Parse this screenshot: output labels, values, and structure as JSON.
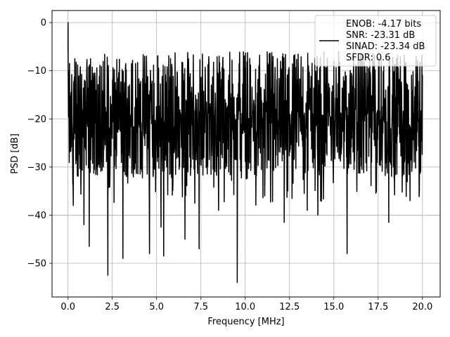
{
  "chart_data": {
    "type": "line",
    "title": "",
    "xlabel": "Frequency [MHz]",
    "ylabel": "PSD [dB]",
    "xlim": [
      -0.9,
      21.0
    ],
    "ylim": [
      -57,
      2.5
    ],
    "xticks": [
      0.0,
      2.5,
      5.0,
      7.5,
      10.0,
      12.5,
      15.0,
      17.5,
      20.0
    ],
    "xtick_labels": [
      "0.0",
      "2.5",
      "5.0",
      "7.5",
      "10.0",
      "12.5",
      "15.0",
      "17.5",
      "20.0"
    ],
    "yticks": [
      0,
      -10,
      -20,
      -30,
      -40,
      -50
    ],
    "ytick_labels": [
      "0",
      "−10",
      "−20",
      "−30",
      "−40",
      "−50"
    ],
    "grid": true,
    "legend_position": "top-right",
    "series": [
      {
        "color": "#000000",
        "description": "noise-like spectrum; values approximate (dense signal, individual points not readable)",
        "x_range": [
          0.0,
          20.0
        ],
        "level_db": -20,
        "upper_envelope_db": -8,
        "lower_envelope_db": -32,
        "peak": {
          "x": 0.0,
          "y": 0.0
        },
        "deep_dips": [
          {
            "x": 0.3,
            "y": -38
          },
          {
            "x": 0.9,
            "y": -42
          },
          {
            "x": 1.2,
            "y": -46.5
          },
          {
            "x": 2.25,
            "y": -52.5
          },
          {
            "x": 3.1,
            "y": -49
          },
          {
            "x": 4.6,
            "y": -48
          },
          {
            "x": 5.25,
            "y": -42.5
          },
          {
            "x": 5.4,
            "y": -48.5
          },
          {
            "x": 6.6,
            "y": -45
          },
          {
            "x": 7.4,
            "y": -47
          },
          {
            "x": 8.5,
            "y": -39
          },
          {
            "x": 9.55,
            "y": -54
          },
          {
            "x": 11.1,
            "y": -36
          },
          {
            "x": 12.2,
            "y": -41.5
          },
          {
            "x": 13.5,
            "y": -39
          },
          {
            "x": 14.1,
            "y": -40
          },
          {
            "x": 15.75,
            "y": -48
          },
          {
            "x": 18.1,
            "y": -41.5
          },
          {
            "x": 19.3,
            "y": -37
          }
        ]
      }
    ],
    "legend": {
      "lines": [
        "ENOB: -4.17 bits",
        "SNR: -23.31 dB",
        "SINAD: -23.34 dB",
        "SFDR: 0.6"
      ]
    }
  }
}
